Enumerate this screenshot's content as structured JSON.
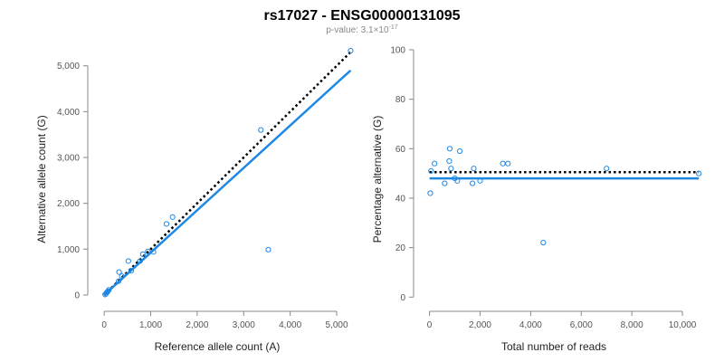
{
  "figure": {
    "title": "rs17027 - ENSG00000131095",
    "subtitle": {
      "prefix": "p-value: 3.1×10",
      "exponent": "-17"
    }
  },
  "colors": {
    "points": "#1e88e5",
    "fit_line": "#1e88e5",
    "reference_line": "#000000"
  },
  "chart_data": [
    {
      "type": "scatter",
      "xlabel": "Reference allele count (A)",
      "ylabel": "Alternative allele count (G)",
      "xlim": [
        -100,
        5350
      ],
      "ylim": [
        -100,
        5350
      ],
      "xticks": [
        0,
        1000,
        2000,
        3000,
        4000,
        5000
      ],
      "yticks": [
        0,
        1000,
        2000,
        3000,
        4000,
        5000
      ],
      "xtick_labels": [
        "0",
        "1,000",
        "2,000",
        "3,000",
        "4,000",
        "5,000"
      ],
      "ytick_labels": [
        "0",
        "1,000",
        "2,000",
        "3,000",
        "4,000",
        "5,000"
      ],
      "points": [
        [
          20,
          10
        ],
        [
          40,
          30
        ],
        [
          60,
          60
        ],
        [
          80,
          80
        ],
        [
          100,
          110
        ],
        [
          310,
          300
        ],
        [
          320,
          500
        ],
        [
          380,
          410
        ],
        [
          520,
          740
        ],
        [
          580,
          530
        ],
        [
          770,
          740
        ],
        [
          830,
          890
        ],
        [
          940,
          950
        ],
        [
          1060,
          940
        ],
        [
          1340,
          1550
        ],
        [
          1470,
          1700
        ],
        [
          3370,
          3600
        ],
        [
          3530,
          990
        ],
        [
          5300,
          5330
        ]
      ],
      "lines": [
        {
          "role": "reference",
          "style": "dotted",
          "x": [
            0,
            5300
          ],
          "y": [
            0,
            5300
          ]
        },
        {
          "role": "fit",
          "style": "solid",
          "x": [
            0,
            5300
          ],
          "y": [
            0,
            4900
          ]
        }
      ]
    },
    {
      "type": "scatter",
      "xlabel": "Total number of reads",
      "ylabel": "Percentage alternative (G)",
      "xlim": [
        -200,
        10750
      ],
      "ylim": [
        -1,
        100
      ],
      "xticks": [
        0,
        2000,
        4000,
        6000,
        8000,
        10000
      ],
      "yticks": [
        0,
        20,
        40,
        60,
        80,
        100
      ],
      "xtick_labels": [
        "0",
        "2,000",
        "4,000",
        "6,000",
        "8,000",
        "10,000"
      ],
      "ytick_labels": [
        "0",
        "20",
        "40",
        "60",
        "80",
        "100"
      ],
      "points": [
        [
          30,
          42
        ],
        [
          60,
          51
        ],
        [
          200,
          54
        ],
        [
          600,
          46
        ],
        [
          780,
          55
        ],
        [
          800,
          60
        ],
        [
          850,
          52
        ],
        [
          1000,
          48
        ],
        [
          1100,
          47
        ],
        [
          1200,
          59
        ],
        [
          1700,
          46
        ],
        [
          1750,
          52
        ],
        [
          2000,
          47
        ],
        [
          2900,
          54
        ],
        [
          3100,
          54
        ],
        [
          4500,
          22
        ],
        [
          7000,
          52
        ],
        [
          10650,
          50
        ]
      ],
      "lines": [
        {
          "role": "reference",
          "style": "dotted",
          "x": [
            0,
            10650
          ],
          "y": [
            50.5,
            50.5
          ]
        },
        {
          "role": "fit",
          "style": "solid",
          "x": [
            0,
            10650
          ],
          "y": [
            48,
            48
          ]
        }
      ]
    }
  ]
}
